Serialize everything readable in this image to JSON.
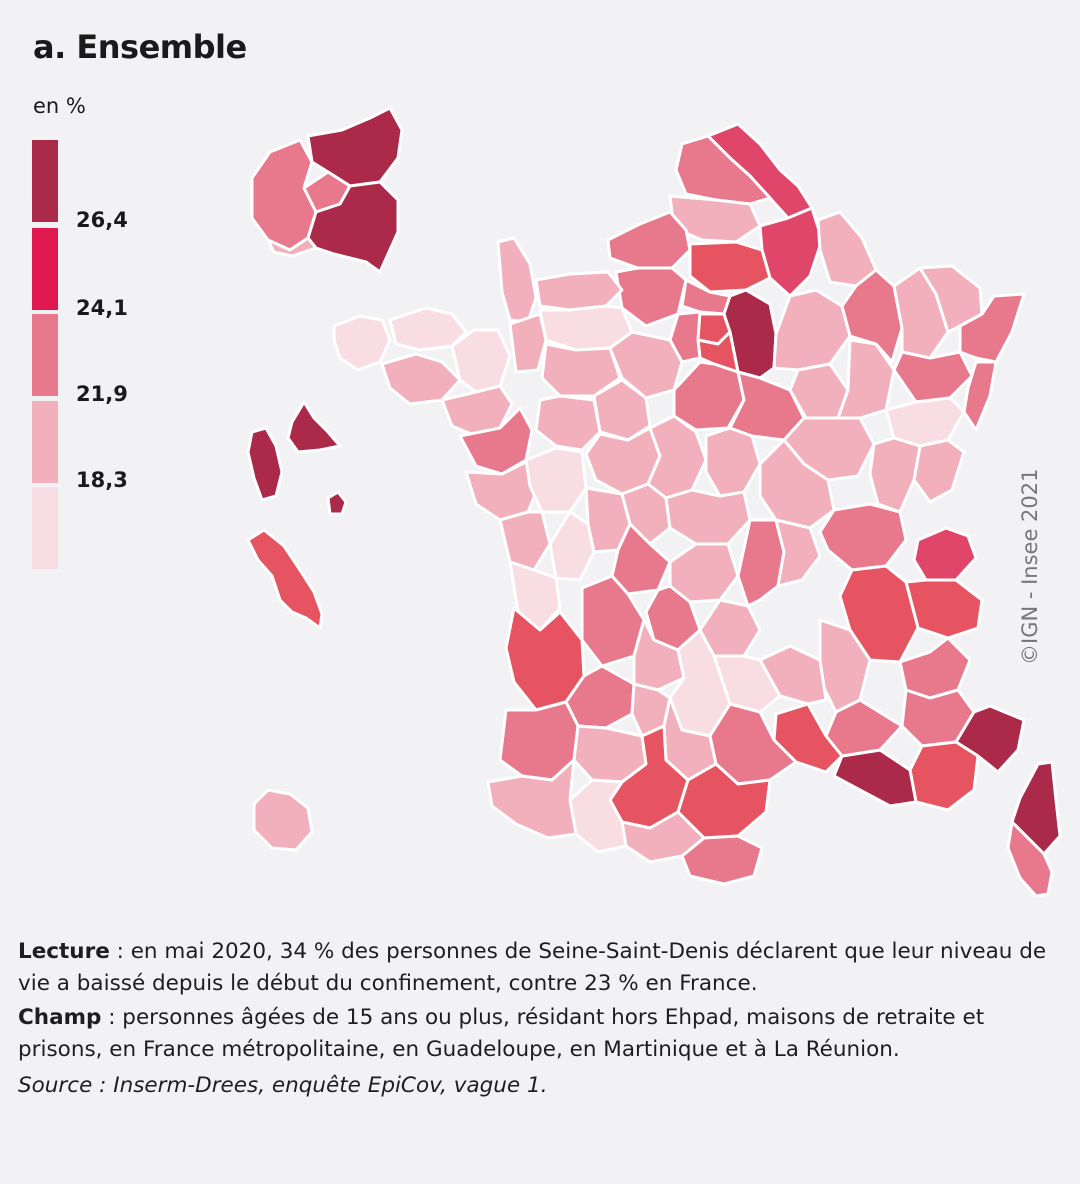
{
  "title": "a. Ensemble",
  "legend": {
    "unit": "en %",
    "thresholds": [
      "26,4",
      "24,1",
      "21,9",
      "18,3"
    ],
    "colors": [
      "#ab2a49",
      "#e0184f",
      "#e8788b",
      "#f1b0bb",
      "#f8dde3"
    ]
  },
  "credit": "©IGN - Insee 2021",
  "notes": {
    "lecture_label": "Lecture",
    "lecture_text": " : en mai 2020, 34 % des personnes de Seine-Saint-Denis déclarent que leur niveau de vie a baissé depuis le début du confinement, contre 23 % en France.",
    "champ_label": "Champ",
    "champ_text": " : personnes âgées de 15 ans ou plus, résidant hors Ehpad, maisons de retraite et prisons, en France métropolitaine, en Guadeloupe, en Martinique et à La Réunion.",
    "source": "Source : Inserm-Drees, enquête EpiCov, vague 1."
  }
}
